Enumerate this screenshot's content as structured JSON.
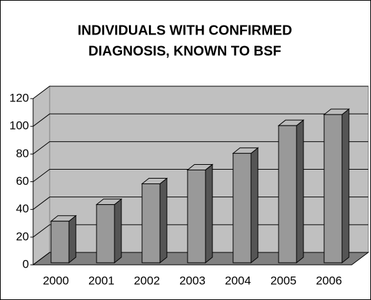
{
  "chart_data": {
    "type": "bar3d",
    "title": [
      "INDIVIDUALS WITH CONFIRMED",
      "DIAGNOSIS, KNOWN TO BSF"
    ],
    "categories": [
      "2000",
      "2001",
      "2002",
      "2003",
      "2004",
      "2005",
      "2006"
    ],
    "values": [
      30,
      42,
      57,
      67,
      79,
      99,
      107
    ],
    "color": "#999999",
    "ylim": [
      0,
      120
    ],
    "yticks": [
      0,
      20,
      40,
      60,
      80,
      100,
      120
    ],
    "grid": true
  }
}
